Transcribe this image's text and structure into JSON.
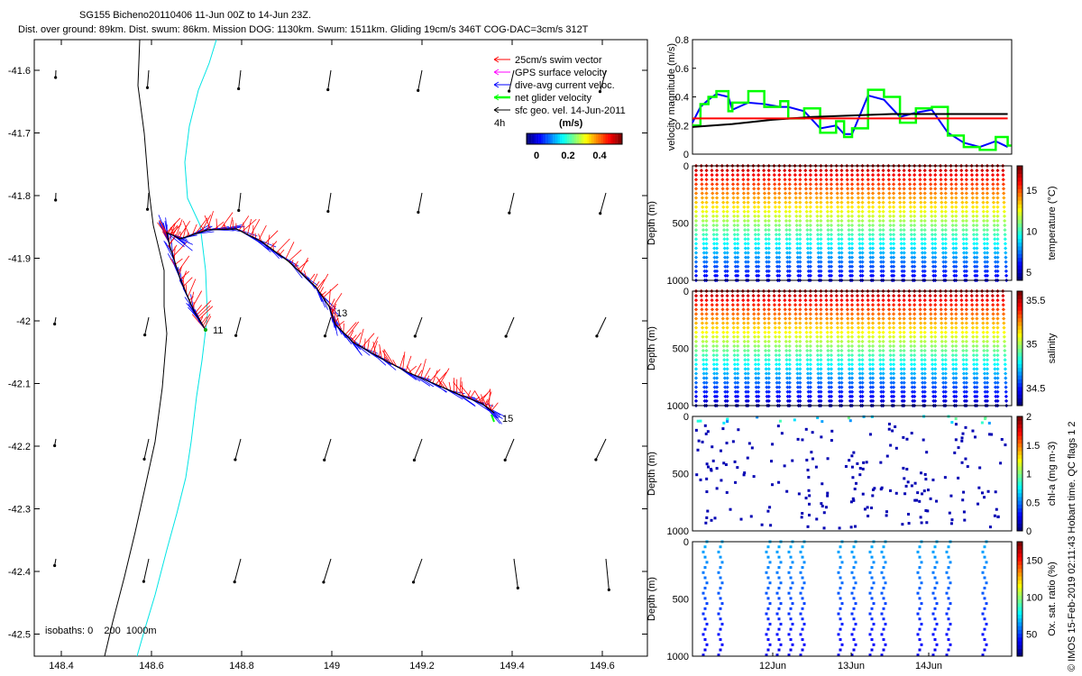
{
  "header": {
    "title_line1": "SG155 Bicheno20110406 11-Jun 00Z to 14-Jun 23Z.",
    "title_line2": "Dist. over ground: 89km. Dist. swum: 86km. Mission DOG: 1130km. Swum: 1511km. Gliding 19cm/s 346T COG-DAC=3cm/s 312T"
  },
  "map": {
    "legend": [
      {
        "label": "25cm/s swim vector",
        "color": "#ff0000"
      },
      {
        "label": "GPS surface velocity",
        "color": "#ff00ff"
      },
      {
        "label": "dive-avg current veloc.",
        "color": "#0000ff"
      },
      {
        "label": "net glider velocity",
        "color": "#00ff00"
      },
      {
        "label": "sfc geo. vel. 14-Jun-2011",
        "color": "#000000"
      }
    ],
    "time_step_label": "4h",
    "colorbar_unit": "(m/s)",
    "colorbar_ticks": [
      "0",
      "0.2",
      "0.4"
    ],
    "isobaths_label": "isobaths: 0    200  1000m",
    "x_ticks": [
      "148.4",
      "148.6",
      "148.8",
      "149",
      "149.2",
      "149.4",
      "149.6"
    ],
    "y_ticks": [
      "-41.6",
      "-41.7",
      "-41.8",
      "-41.9",
      "-42",
      "-42.1",
      "-42.2",
      "-42.3",
      "-42.4",
      "-42.5"
    ],
    "day_labels": [
      "11",
      "13",
      "15"
    ]
  },
  "chart_data": [
    {
      "type": "line",
      "title": "",
      "xlabel": "",
      "ylabel": "velocity magnitude (m/s)",
      "ylim": [
        0,
        0.8
      ],
      "y_ticks": [
        "0",
        "0.2",
        "0.4",
        "0.6",
        "0.8"
      ],
      "series": [
        {
          "name": "dive-avg current veloc.",
          "color": "#0000ff",
          "x": [
            11.0,
            11.1,
            11.2,
            11.3,
            11.45,
            11.5,
            11.7,
            11.9,
            12.1,
            12.2,
            12.4,
            12.6,
            12.8,
            12.9,
            13.0,
            13.2,
            13.4,
            13.6,
            13.8,
            14.0,
            14.2,
            14.4,
            14.6,
            14.8,
            14.95
          ],
          "values": [
            0.22,
            0.33,
            0.38,
            0.42,
            0.4,
            0.31,
            0.36,
            0.35,
            0.33,
            0.33,
            0.3,
            0.18,
            0.2,
            0.14,
            0.14,
            0.41,
            0.38,
            0.26,
            0.29,
            0.31,
            0.15,
            0.08,
            0.05,
            0.09,
            0.05
          ]
        },
        {
          "name": "net glider velocity",
          "color": "#00ff00",
          "x": [
            11.0,
            11.1,
            11.2,
            11.3,
            11.45,
            11.5,
            11.7,
            11.9,
            12.1,
            12.2,
            12.4,
            12.6,
            12.8,
            12.9,
            13.0,
            13.2,
            13.4,
            13.6,
            13.8,
            14.0,
            14.2,
            14.4,
            14.6,
            14.8,
            14.95
          ],
          "values": [
            0.2,
            0.35,
            0.4,
            0.44,
            0.3,
            0.36,
            0.44,
            0.33,
            0.37,
            0.25,
            0.32,
            0.15,
            0.23,
            0.12,
            0.18,
            0.45,
            0.4,
            0.22,
            0.32,
            0.33,
            0.13,
            0.05,
            0.03,
            0.12,
            0.06
          ]
        },
        {
          "name": "",
          "color": "#000000",
          "x": [
            11.0,
            11.5,
            12.0,
            12.5,
            13.0,
            13.5,
            14.0,
            14.5,
            14.95
          ],
          "values": [
            0.19,
            0.21,
            0.24,
            0.26,
            0.27,
            0.28,
            0.28,
            0.28,
            0.28
          ]
        },
        {
          "name": "",
          "color": "#ff0000",
          "x": [
            11.0,
            14.95
          ],
          "values": [
            0.25,
            0.25
          ]
        }
      ]
    },
    {
      "type": "scatter",
      "ylabel": "Depth (m)",
      "ylim": [
        1000,
        0
      ],
      "y_ticks": [
        "0",
        "500",
        "1000"
      ],
      "colorbar_label": "temperature (°C)",
      "colorbar_ticks": [
        "5",
        "10",
        "15"
      ],
      "crange": [
        4,
        18
      ]
    },
    {
      "type": "scatter",
      "ylabel": "Depth (m)",
      "ylim": [
        1000,
        0
      ],
      "y_ticks": [
        "0",
        "500",
        "1000"
      ],
      "colorbar_label": "salinity",
      "colorbar_ticks": [
        "34.5",
        "35",
        "35.5"
      ],
      "crange": [
        34.3,
        35.6
      ]
    },
    {
      "type": "scatter",
      "ylabel": "Depth (m)",
      "ylim": [
        1000,
        0
      ],
      "y_ticks": [
        "0",
        "500",
        "1000"
      ],
      "colorbar_label": "chl-a (mg m-3)",
      "colorbar_ticks": [
        "0",
        "0.5",
        "1",
        "1.5",
        "2"
      ],
      "crange": [
        0,
        2
      ]
    },
    {
      "type": "scatter",
      "ylabel": "Depth (m)",
      "ylim": [
        1000,
        0
      ],
      "y_ticks": [
        "0",
        "500",
        "1000"
      ],
      "colorbar_label": "Ox. sat. ratio (%)",
      "colorbar_ticks": [
        "50",
        "100",
        "150"
      ],
      "crange": [
        20,
        175
      ],
      "x_ticks": [
        "12Jun",
        "13Jun",
        "14Jun"
      ]
    }
  ],
  "side_note": "© IMOS 15-Feb-2019 02:11:43 Hobart time. QC flags 1  2"
}
